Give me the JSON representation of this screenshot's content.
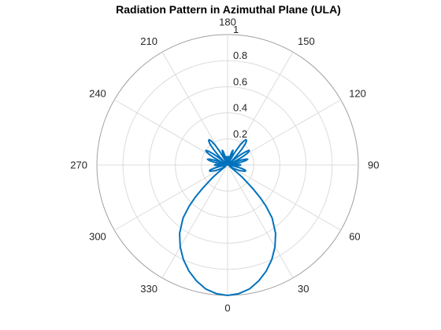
{
  "chart_data": {
    "type": "polar-line",
    "title": "Radiation Pattern in Azimuthal Plane (ULA)",
    "theta_zero_location": "bottom",
    "theta_direction": "counterclockwise",
    "theta_ticks": [
      0,
      30,
      60,
      90,
      120,
      150,
      180,
      210,
      240,
      270,
      300,
      330
    ],
    "theta_tick_labels": [
      "0",
      "30",
      "60",
      "90",
      "120",
      "150",
      "180",
      "210",
      "240",
      "270",
      "300",
      "330"
    ],
    "r_ticks": [
      0.2,
      0.4,
      0.6,
      0.8,
      1
    ],
    "r_tick_labels": [
      "0.2",
      "0.4",
      "0.6",
      "0.8",
      "1"
    ],
    "rlim": [
      0,
      1
    ],
    "grid": true,
    "series": [
      {
        "color": "#0072BD",
        "theta_deg": [
          0,
          5,
          10,
          15,
          20,
          25,
          30,
          35,
          40,
          43,
          45,
          47,
          50,
          52,
          55,
          58,
          60,
          65,
          70,
          72,
          74,
          76,
          78,
          80,
          82,
          84,
          86,
          88,
          90,
          92,
          94,
          96,
          98,
          100,
          102,
          104,
          106,
          108,
          110,
          112,
          114,
          116,
          118,
          120,
          122,
          124,
          126,
          128,
          130,
          132,
          134,
          136,
          138,
          140,
          142,
          144,
          146,
          148,
          150,
          152,
          154,
          156,
          158,
          160,
          162,
          164,
          166,
          168,
          170,
          172,
          174,
          176,
          178,
          180,
          182,
          184,
          186,
          188,
          190,
          192,
          194,
          196,
          198,
          200,
          202,
          204,
          206,
          208,
          210,
          212,
          214,
          216,
          218,
          220,
          222,
          224,
          226,
          228,
          230,
          232,
          234,
          236,
          238,
          240,
          242,
          244,
          246,
          248,
          250,
          252,
          254,
          256,
          258,
          260,
          262,
          264,
          266,
          268,
          270,
          272,
          274,
          276,
          278,
          280,
          282,
          284,
          286,
          288,
          290,
          295,
          300,
          302,
          305,
          308,
          310,
          313,
          315,
          317,
          320,
          325,
          330,
          335,
          340,
          345,
          350,
          355,
          360
        ],
        "r": [
          1,
          0.99,
          0.965,
          0.92,
          0.865,
          0.8,
          0.725,
          0.64,
          0.53,
          0.43,
          0.35,
          0.26,
          0.15,
          0.08,
          0.02,
          0.02,
          0.05,
          0.1,
          0.14,
          0.145,
          0.14,
          0.115,
          0.08,
          0.04,
          0.01,
          0.02,
          0.06,
          0.09,
          0.1,
          0.09,
          0.06,
          0.02,
          0.01,
          0.06,
          0.11,
          0.145,
          0.16,
          0.145,
          0.11,
          0.06,
          0.01,
          0.05,
          0.11,
          0.16,
          0.19,
          0.2,
          0.18,
          0.14,
          0.08,
          0.02,
          0.04,
          0.1,
          0.16,
          0.21,
          0.235,
          0.24,
          0.22,
          0.18,
          0.12,
          0.05,
          0.01,
          0.06,
          0.1,
          0.12,
          0.11,
          0.07,
          0.02,
          0.01,
          0.04,
          0.06,
          0.065,
          0.055,
          0.03,
          0,
          0.03,
          0.055,
          0.065,
          0.06,
          0.04,
          0.01,
          0.02,
          0.07,
          0.11,
          0.12,
          0.1,
          0.06,
          0.01,
          0.05,
          0.12,
          0.18,
          0.22,
          0.24,
          0.235,
          0.21,
          0.16,
          0.1,
          0.04,
          0.02,
          0.08,
          0.14,
          0.18,
          0.2,
          0.19,
          0.16,
          0.11,
          0.05,
          0.01,
          0.06,
          0.11,
          0.145,
          0.16,
          0.145,
          0.11,
          0.06,
          0.01,
          0.02,
          0.06,
          0.09,
          0.1,
          0.09,
          0.06,
          0.02,
          0.01,
          0.04,
          0.08,
          0.115,
          0.14,
          0.145,
          0.14,
          0.1,
          0.05,
          0.02,
          0.02,
          0.08,
          0.15,
          0.26,
          0.35,
          0.43,
          0.53,
          0.64,
          0.725,
          0.8,
          0.865,
          0.92,
          0.965,
          0.99,
          1
        ]
      }
    ]
  }
}
